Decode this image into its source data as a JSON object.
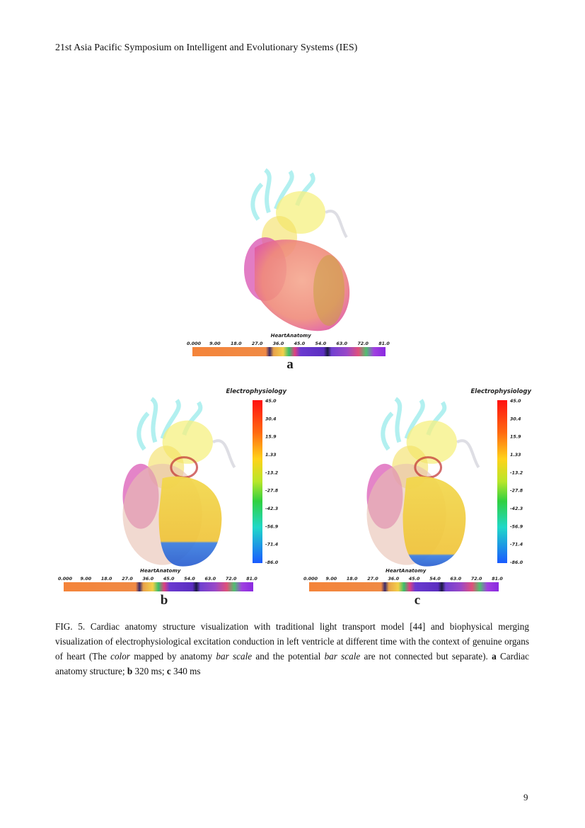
{
  "header": {
    "title": "21st Asia Pacific Symposium on Intelligent and Evolutionary Systems (IES)"
  },
  "figure": {
    "panels": [
      {
        "label": "a",
        "anatomy_bar": {
          "title": "HeartAnatomy",
          "ticks": [
            "0.000",
            "9.00",
            "18.0",
            "27.0",
            "36.0",
            "45.0",
            "54.0",
            "63.0",
            "72.0",
            "81.0"
          ]
        }
      },
      {
        "label": "b",
        "anatomy_bar": {
          "title": "HeartAnatomy",
          "ticks": [
            "0.000",
            "9.00",
            "18.0",
            "27.0",
            "36.0",
            "45.0",
            "54.0",
            "63.0",
            "72.0",
            "81.0"
          ]
        },
        "potential_bar": {
          "title": "Electrophysiology",
          "ticks": [
            "45.0",
            "30.4",
            "15.9",
            "1.33",
            "-13.2",
            "-27.8",
            "-42.3",
            "-56.9",
            "-71.4",
            "-86.0"
          ]
        }
      },
      {
        "label": "c",
        "anatomy_bar": {
          "title": "HeartAnatomy",
          "ticks": [
            "0.000",
            "9.00",
            "18.0",
            "27.0",
            "36.0",
            "45.0",
            "54.0",
            "63.0",
            "72.0",
            "81.0"
          ]
        },
        "potential_bar": {
          "title": "Electrophysiology",
          "ticks": [
            "45.0",
            "30.4",
            "15.9",
            "1.33",
            "-13.2",
            "-27.8",
            "-42.3",
            "-56.9",
            "-71.4",
            "-86.0"
          ]
        }
      }
    ]
  },
  "caption": {
    "parts": [
      "FIG. 5. Cardiac anatomy structure visualization with traditional light transport model [44] and biophysical merging visualization of electrophysiological excitation conduction in left ventricle at different time with the context of genuine organs of heart (The ",
      "color",
      " mapped by anatomy ",
      "bar scale",
      " and the potential ",
      "bar scale",
      " are not connected but separate). ",
      "a",
      " Cardiac anatomy structure; ",
      "b",
      " 320 ms; ",
      "c",
      " 340 ms"
    ]
  },
  "footer": {
    "page_number": "9"
  }
}
